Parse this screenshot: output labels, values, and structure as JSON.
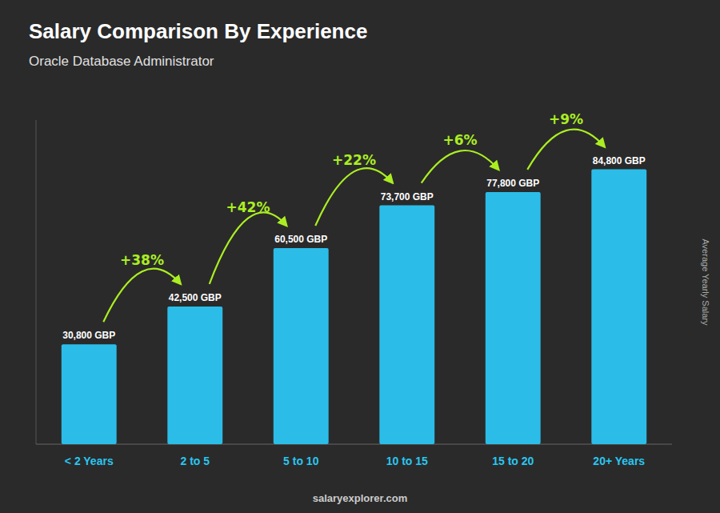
{
  "chart_data": {
    "type": "bar",
    "title": "Salary Comparison By Experience",
    "subtitle": "Oracle Database Administrator",
    "ylabel": "Average Yearly Salary",
    "footer": "salaryexplorer.com",
    "categories": [
      "< 2 Years",
      "2 to 5",
      "5 to 10",
      "10 to 15",
      "15 to 20",
      "20+ Years"
    ],
    "values": [
      30800,
      42500,
      60500,
      73700,
      77800,
      84800
    ],
    "value_labels": [
      "30,800 GBP",
      "42,500 GBP",
      "60,500 GBP",
      "73,700 GBP",
      "77,800 GBP",
      "84,800 GBP"
    ],
    "annotations": [
      "+38%",
      "+42%",
      "+22%",
      "+6%",
      "+9%"
    ],
    "color": "#2bbde8",
    "ylim": [
      0,
      100000
    ],
    "grid": false,
    "data_labels": true,
    "tick_labels": "x"
  }
}
